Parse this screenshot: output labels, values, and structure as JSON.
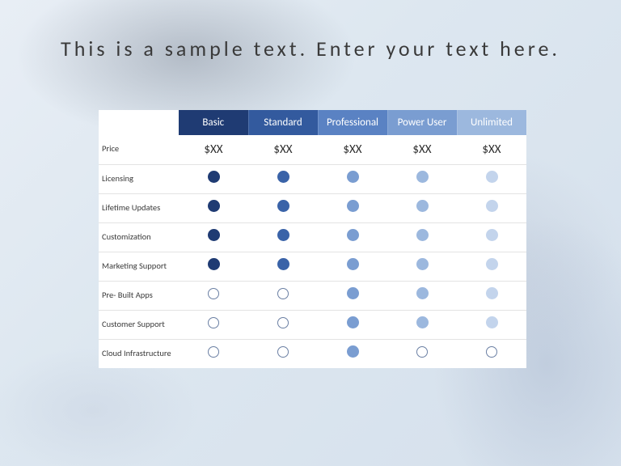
{
  "title": "This is a sample text. Enter your text here.",
  "table": {
    "type": "table",
    "background_color": "#ffffff",
    "row_border_color": "#e3e3e3",
    "label_fontsize": 10.5,
    "header_fontsize": 13,
    "price_fontsize": 15,
    "dot_size": 15,
    "ring_size": 14,
    "ring_border_color": "#6a7fa3",
    "plans": [
      {
        "label": "Basic",
        "header_bg": "#1f3b73",
        "dot_color": "#1f3b73",
        "price": "$XX"
      },
      {
        "label": "Standard",
        "header_bg": "#335a9e",
        "dot_color": "#3a63a8",
        "price": "$XX"
      },
      {
        "label": "Professional",
        "header_bg": "#5a82c3",
        "dot_color": "#7a9dd1",
        "price": "$XX"
      },
      {
        "label": "Power User",
        "header_bg": "#7a9dd1",
        "dot_color": "#9cb8de",
        "price": "$XX"
      },
      {
        "label": "Unlimited",
        "header_bg": "#9cb8de",
        "dot_color": "#c3d4ec",
        "price": "$XX"
      }
    ],
    "rows": [
      {
        "label": "Price",
        "kind": "price"
      },
      {
        "label": "Licensing",
        "kind": "dots",
        "cells": [
          "filled",
          "filled",
          "filled",
          "filled",
          "filled"
        ]
      },
      {
        "label": "Lifetime Updates",
        "kind": "dots",
        "cells": [
          "filled",
          "filled",
          "filled",
          "filled",
          "filled"
        ]
      },
      {
        "label": "Customization",
        "kind": "dots",
        "cells": [
          "filled",
          "filled",
          "filled",
          "filled",
          "filled"
        ]
      },
      {
        "label": "Marketing Support",
        "kind": "dots",
        "cells": [
          "filled",
          "filled",
          "filled",
          "filled",
          "filled"
        ]
      },
      {
        "label": "Pre- Built Apps",
        "kind": "dots",
        "cells": [
          "empty",
          "empty",
          "filled",
          "filled",
          "filled"
        ]
      },
      {
        "label": "Customer Support",
        "kind": "dots",
        "cells": [
          "empty",
          "empty",
          "filled",
          "filled",
          "filled"
        ]
      },
      {
        "label": "Cloud Infrastructure",
        "kind": "dots",
        "cells": [
          "empty",
          "empty",
          "filled",
          "empty",
          "empty"
        ]
      }
    ]
  }
}
